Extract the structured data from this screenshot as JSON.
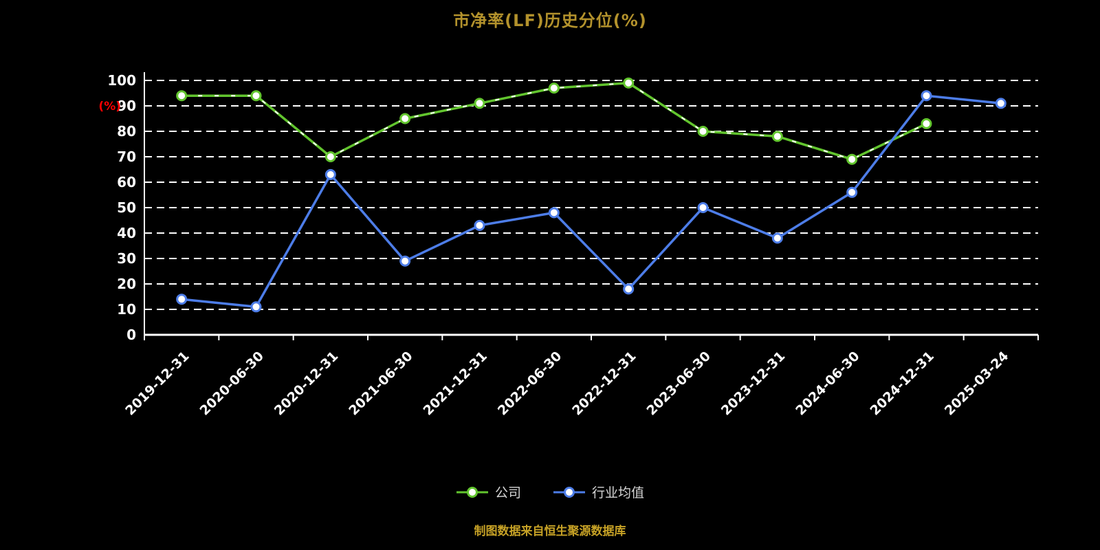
{
  "title": "市净率(LF)历史分位(%)",
  "footer": "制图数据来自恒生聚源数据库",
  "chart_data": {
    "type": "line",
    "title": "市净率(LF)历史分位(%)",
    "ylabel": "(%)",
    "xlabel": "",
    "categories": [
      "2019-12-31",
      "2020-06-30",
      "2020-12-31",
      "2021-06-30",
      "2021-12-31",
      "2022-06-30",
      "2022-12-31",
      "2023-06-30",
      "2023-12-31",
      "2024-06-30",
      "2024-12-31",
      "2025-03-24"
    ],
    "series": [
      {
        "name": "公司",
        "color": "#62c52e",
        "values": [
          94,
          94,
          70,
          85,
          91,
          97,
          99,
          80,
          78,
          69,
          83,
          null
        ]
      },
      {
        "name": "行业均值",
        "color": "#4d7de8",
        "values": [
          14,
          11,
          63,
          29,
          43,
          48,
          18,
          50,
          38,
          56,
          94,
          91
        ]
      }
    ],
    "ylim": [
      0,
      100
    ],
    "yticks": [
      0,
      10,
      20,
      30,
      40,
      50,
      60,
      70,
      80,
      90,
      100
    ],
    "grid": true,
    "grid_style": "dashed",
    "legend_position": "bottom"
  },
  "colors": {
    "background": "#000000",
    "title": "#b3922c",
    "footer": "#c7a226",
    "axis": "#ffffff",
    "tick_label": "#ffffff",
    "ylabel": "#ff0000",
    "grid": "#ffffff",
    "legend_text": "#d6d6d6",
    "company": "#62c52e",
    "industry": "#4d7de8"
  }
}
